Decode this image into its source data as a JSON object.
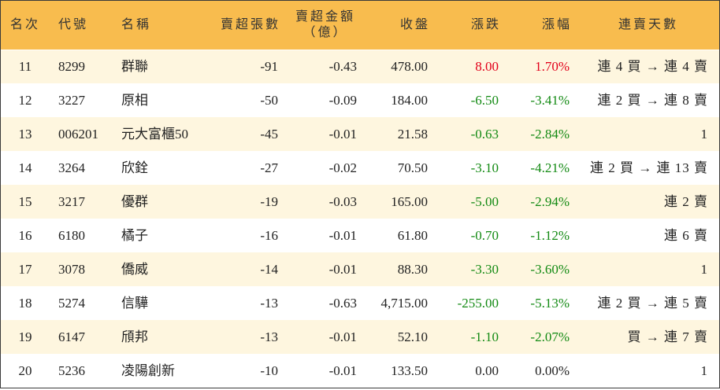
{
  "chart_data": {
    "type": "table",
    "columns": {
      "rank": "名次",
      "code": "代號",
      "name": "名稱",
      "sell_volume": "賣超張數",
      "sell_amount": "賣超金額",
      "sell_amount_unit": "（億）",
      "close": "收盤",
      "change": "漲跌",
      "change_pct": "漲幅",
      "streak": "連賣天數"
    },
    "rows": [
      {
        "rank": "11",
        "code": "8299",
        "name": "群聯",
        "sell_volume": "-91",
        "sell_amount": "-0.43",
        "close": "478.00",
        "change": "8.00",
        "change_pct": "1.70%",
        "streak": "連 4 買 → 連 4 賣"
      },
      {
        "rank": "12",
        "code": "3227",
        "name": "原相",
        "sell_volume": "-50",
        "sell_amount": "-0.09",
        "close": "184.00",
        "change": "-6.50",
        "change_pct": "-3.41%",
        "streak": "連 2 買 → 連 8 賣"
      },
      {
        "rank": "13",
        "code": "006201",
        "name": "元大富櫃50",
        "sell_volume": "-45",
        "sell_amount": "-0.01",
        "close": "21.58",
        "change": "-0.63",
        "change_pct": "-2.84%",
        "streak": "1"
      },
      {
        "rank": "14",
        "code": "3264",
        "name": "欣銓",
        "sell_volume": "-27",
        "sell_amount": "-0.02",
        "close": "70.50",
        "change": "-3.10",
        "change_pct": "-4.21%",
        "streak": "連 2 買 → 連 13 賣"
      },
      {
        "rank": "15",
        "code": "3217",
        "name": "優群",
        "sell_volume": "-19",
        "sell_amount": "-0.03",
        "close": "165.00",
        "change": "-5.00",
        "change_pct": "-2.94%",
        "streak": "連 2 賣"
      },
      {
        "rank": "16",
        "code": "6180",
        "name": "橘子",
        "sell_volume": "-16",
        "sell_amount": "-0.01",
        "close": "61.80",
        "change": "-0.70",
        "change_pct": "-1.12%",
        "streak": "連 6 賣"
      },
      {
        "rank": "17",
        "code": "3078",
        "name": "僑威",
        "sell_volume": "-14",
        "sell_amount": "-0.01",
        "close": "88.30",
        "change": "-3.30",
        "change_pct": "-3.60%",
        "streak": "1"
      },
      {
        "rank": "18",
        "code": "5274",
        "name": "信驊",
        "sell_volume": "-13",
        "sell_amount": "-0.63",
        "close": "4,715.00",
        "change": "-255.00",
        "change_pct": "-5.13%",
        "streak": "連 2 買 → 連 5 賣"
      },
      {
        "rank": "19",
        "code": "6147",
        "name": "頎邦",
        "sell_volume": "-13",
        "sell_amount": "-0.01",
        "close": "52.10",
        "change": "-1.10",
        "change_pct": "-2.07%",
        "streak": "買 → 連 7 賣"
      },
      {
        "rank": "20",
        "code": "5236",
        "name": "凌陽創新",
        "sell_volume": "-10",
        "sell_amount": "-0.01",
        "close": "133.50",
        "change": "0.00",
        "change_pct": "0.00%",
        "streak": "1"
      }
    ]
  },
  "colors": {
    "header_bg": "#F8BC4E",
    "row_alt_bg": "#FEF6DF",
    "up": "#E2001A",
    "down": "#138A13",
    "flat": "#222222"
  }
}
